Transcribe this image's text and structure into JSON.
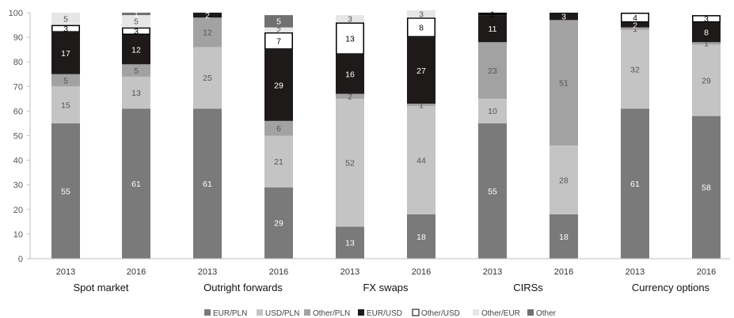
{
  "chart_data": {
    "type": "bar",
    "stacked": true,
    "ylim": [
      0,
      100
    ],
    "yticks": [
      0,
      10,
      20,
      30,
      40,
      50,
      60,
      70,
      80,
      90,
      100
    ],
    "grid": false,
    "legend_position": "bottom",
    "groups": [
      {
        "name": "Spot market",
        "bars": [
          {
            "year": "2013",
            "values": [
              55,
              15,
              5,
              17,
              3,
              5,
              0
            ]
          },
          {
            "year": "2016",
            "values": [
              61,
              13,
              5,
              12,
              3,
              5,
              1
            ]
          }
        ]
      },
      {
        "name": "Outright forwards",
        "bars": [
          {
            "year": "2013",
            "values": [
              61,
              25,
              12,
              2,
              0,
              0,
              0
            ]
          },
          {
            "year": "2016",
            "values": [
              29,
              21,
              6,
              29,
              7,
              2,
              5
            ]
          }
        ]
      },
      {
        "name": "FX swaps",
        "bars": [
          {
            "year": "2013",
            "values": [
              13,
              52,
              2,
              16,
              13,
              3,
              0
            ]
          },
          {
            "year": "2016",
            "values": [
              18,
              44,
              1,
              27,
              8,
              3,
              0
            ]
          }
        ]
      },
      {
        "name": "CIRSs",
        "bars": [
          {
            "year": "2013",
            "values": [
              55,
              10,
              23,
              11,
              1,
              0,
              0
            ]
          },
          {
            "year": "2016",
            "values": [
              18,
              28,
              51,
              3,
              0,
              0,
              0
            ]
          }
        ]
      },
      {
        "name": "Currency options",
        "bars": [
          {
            "year": "2013",
            "values": [
              61,
              32,
              1,
              2,
              4,
              0,
              0
            ]
          },
          {
            "year": "2016",
            "values": [
              58,
              29,
              1,
              8,
              3,
              0,
              0
            ]
          }
        ]
      }
    ],
    "series": [
      {
        "name": "EUR/PLN",
        "color": "#7a7a7a",
        "label_color": "#ffffff"
      },
      {
        "name": "USD/PLN",
        "color": "#c4c4c4",
        "label_color": "#555555"
      },
      {
        "name": "Other/PLN",
        "color": "#a2a2a2",
        "label_color": "#555555"
      },
      {
        "name": "EUR/USD",
        "color": "#1f1a1a",
        "label_color": "#ffffff"
      },
      {
        "name": "Other/USD",
        "color": "#ffffff",
        "label_color": "#000000",
        "stroke": "#000000"
      },
      {
        "name": "Other/EUR",
        "color": "#e6e6e6",
        "label_color": "#555555"
      },
      {
        "name": "Other",
        "color": "#707070",
        "label_color": "#ffffff"
      }
    ]
  }
}
